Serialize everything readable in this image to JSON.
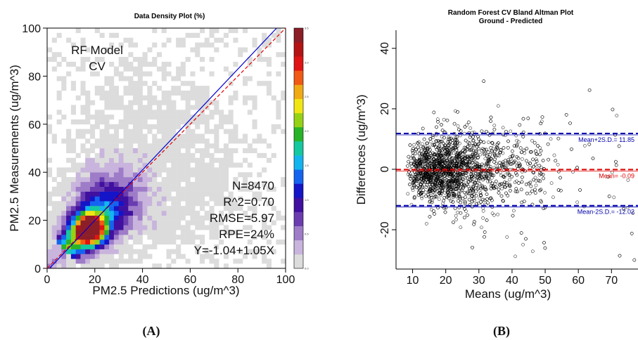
{
  "chart_data": [
    {
      "type": "heatmap",
      "title": "Data Density Plot (%)",
      "xlabel": "PM2.5 Predictions (ug/m^3)",
      "ylabel": "PM2.5 Measurements (ug/m^3)",
      "xlim": [
        0,
        100
      ],
      "ylim": [
        0,
        100
      ],
      "xticks": [
        "0",
        "20",
        "40",
        "60",
        "80",
        "100"
      ],
      "yticks": [
        "0",
        "20",
        "40",
        "60",
        "80",
        "100"
      ],
      "model_label": [
        "RF Model",
        "CV"
      ],
      "stats": [
        "N=8470",
        "R^2=0.70",
        "RMSE=5.97",
        "RPE=24%",
        "Y=-1.04+1.05X"
      ],
      "regression": {
        "intercept": -1.04,
        "slope": 1.05,
        "color": "#0000cc"
      },
      "identity_line": {
        "color": "#e00000",
        "style": "dashed"
      },
      "colorbar": {
        "range": [
          0.0,
          3.5
        ],
        "labels": [
          "0.0",
          "0.5",
          "1.0",
          "1.5",
          "2.0",
          "2.5",
          "3.0",
          "3.5"
        ],
        "colors": [
          "#dcdcdc",
          "#c8b4dc",
          "#9e7cc8",
          "#6a3cb0",
          "#4010a0",
          "#1414c8",
          "#1464f0",
          "#14b4f0",
          "#14c8a0",
          "#28b428",
          "#96d214",
          "#f0e614",
          "#f0aa14",
          "#f05a14",
          "#e01414",
          "#b41414",
          "#8c1e28"
        ]
      }
    },
    {
      "type": "scatter",
      "title": "Random Forest CV Bland Altman Plot",
      "subtitle": "Ground - Predicted",
      "xlabel": "Means (ug/m^3)",
      "ylabel": "Differences (ug/m^3)",
      "xlim": [
        5,
        78
      ],
      "ylim": [
        -33,
        46
      ],
      "xticks": [
        "10",
        "20",
        "30",
        "40",
        "50",
        "60",
        "70"
      ],
      "yticks": [
        "-20",
        "0",
        "20",
        "40"
      ],
      "lines": [
        {
          "label": "Mean+2S.D.= 11.85",
          "value": 11.85,
          "color": "#0000aa"
        },
        {
          "label": "Mean= -0.09",
          "value": -0.09,
          "color": "#dd0000"
        },
        {
          "label": "Mean-2S.D.= -12.02",
          "value": -12.02,
          "color": "#0000aa"
        }
      ]
    }
  ],
  "panels": {
    "a": "(A)",
    "b": "(B)"
  }
}
